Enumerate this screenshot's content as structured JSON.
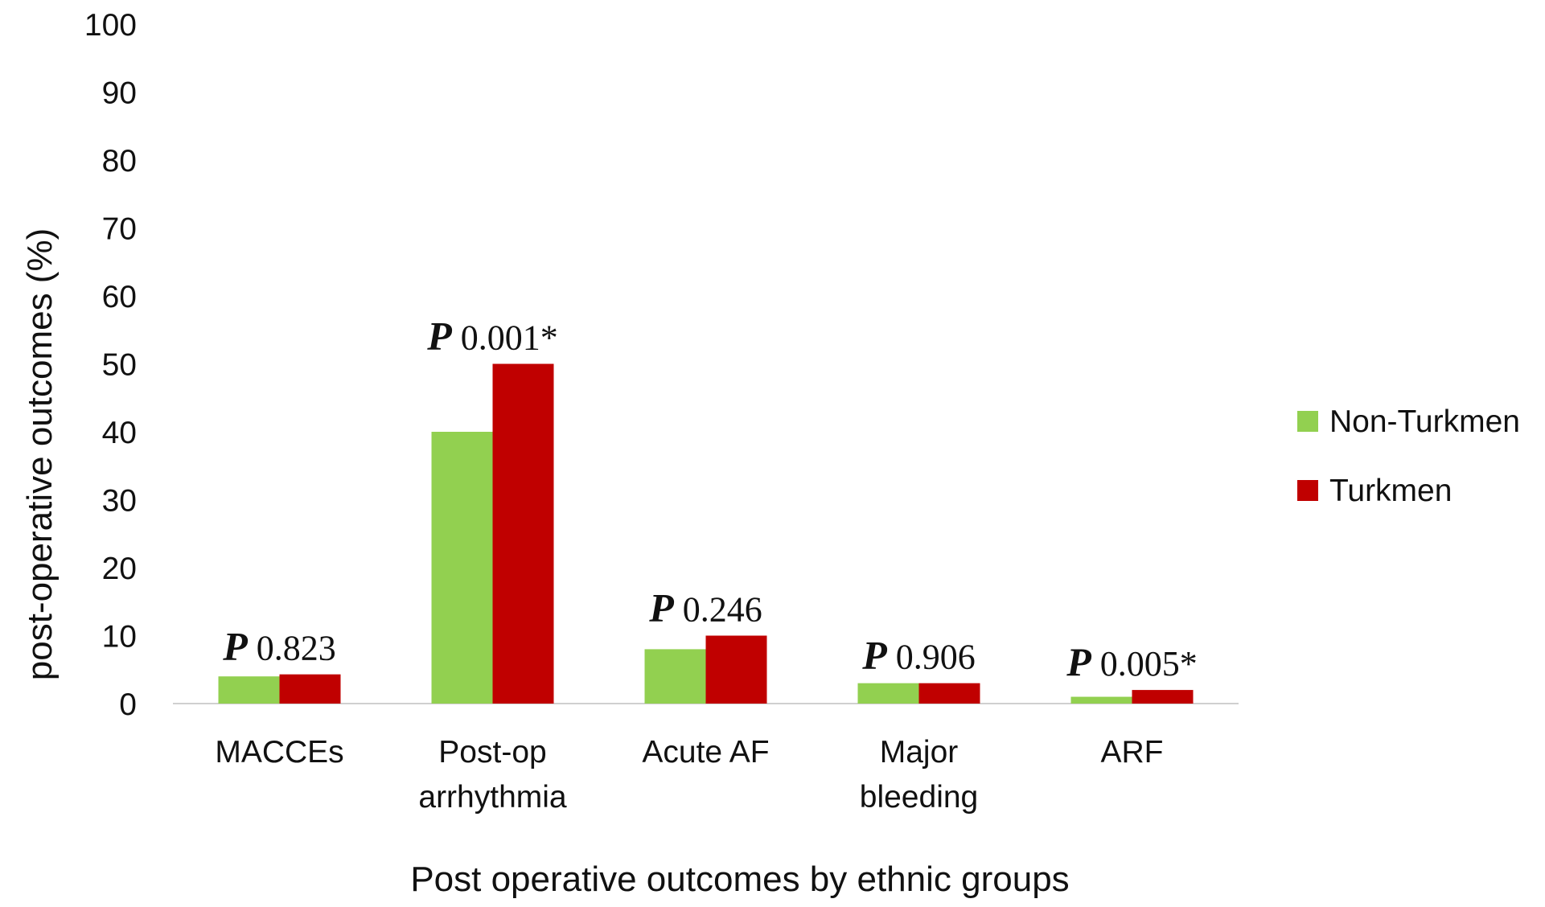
{
  "chart_data": {
    "type": "bar",
    "xlabel": "Post operative outcomes by ethnic groups",
    "ylabel": "post-operative outcomes (%)",
    "ylim": [
      0,
      100
    ],
    "yticks": [
      0,
      10,
      20,
      30,
      40,
      50,
      60,
      70,
      80,
      90,
      100
    ],
    "categories": [
      [
        "MACCEs"
      ],
      [
        "Post-op",
        "arrhythmia"
      ],
      [
        "Acute AF"
      ],
      [
        "Major",
        "bleeding"
      ],
      [
        "ARF"
      ]
    ],
    "series": [
      {
        "name": "Non-Turkmen",
        "color": "#92d050",
        "values": [
          4,
          40,
          8,
          3,
          1
        ]
      },
      {
        "name": "Turkmen",
        "color": "#c00000",
        "values": [
          4.3,
          50,
          10,
          3,
          2
        ]
      }
    ],
    "annotations": [
      {
        "prefix": "P",
        "text": " 0.823"
      },
      {
        "prefix": "P",
        "text": " 0.001*"
      },
      {
        "prefix": "P",
        "text": " 0.246"
      },
      {
        "prefix": "P",
        "text": " 0.906"
      },
      {
        "prefix": "P",
        "text": " 0.005*"
      }
    ],
    "grid": false,
    "legend_position": "right"
  }
}
